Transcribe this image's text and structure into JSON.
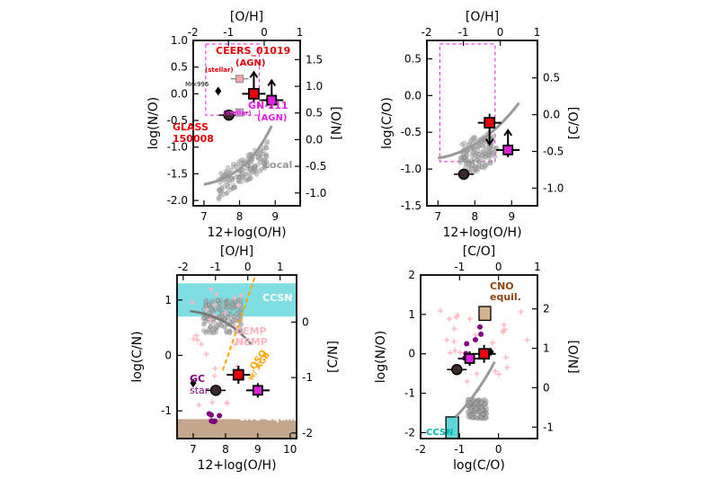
{
  "chart_data": [
    {
      "type": "scatter",
      "panel": "top-left",
      "xlabel": "12+log(O/H)",
      "ylabel": "log(N/O)",
      "xlim": [
        6.7,
        9.7
      ],
      "ylim": [
        -2.1,
        1.0
      ],
      "xticks": [
        7,
        8,
        9
      ],
      "yticks": [
        1.0,
        0.5,
        0.0,
        -0.5,
        -1.0,
        -1.5,
        -2.0
      ],
      "top_axis": {
        "label": "[O/H]",
        "ticks": [
          "-2",
          "-1",
          "0",
          "1"
        ],
        "values": [
          -2,
          -1,
          0,
          1
        ]
      },
      "right_axis": {
        "label": "[N/O]",
        "ticks": [
          "1.5",
          "1.0",
          "0.5",
          "0.0",
          "-0.5",
          "-1.0"
        ],
        "values": [
          1.5,
          1.0,
          0.5,
          0.0,
          -0.5,
          -1.0
        ]
      },
      "annotations": [
        {
          "text": "CEERS_01019",
          "color": "#e8000b"
        },
        {
          "text": "(AGN)",
          "color": "#e8000b"
        },
        {
          "text": "GN-z11",
          "color": "#e020e0"
        },
        {
          "text": "(AGN)",
          "color": "#e020e0"
        },
        {
          "text": "GLASS",
          "color": "#e8000b"
        },
        {
          "text": "150008",
          "color": "#e8000b"
        },
        {
          "text": "Mrk996",
          "color": "#000000"
        },
        {
          "text": "(stellar)",
          "color": "#e8000b"
        },
        {
          "text": "(stellar)",
          "color": "#e020e0"
        },
        {
          "text": "Local",
          "color": "#999999"
        }
      ],
      "series": [
        {
          "kind": "highlight",
          "points": [
            {
              "x": 8.4,
              "y": 0.0,
              "style": "red-square-arrow-up"
            },
            {
              "x": 8.9,
              "y": -0.12,
              "style": "magenta-square-arrow-up"
            },
            {
              "x": 7.7,
              "y": -0.4,
              "style": "black-circle"
            },
            {
              "x": 7.4,
              "y": 0.05,
              "style": "black-diamond"
            },
            {
              "x": 8.0,
              "y": 0.28,
              "style": "gray-pink-square"
            },
            {
              "x": 8.0,
              "y": -0.35,
              "style": "gray-magenta-square"
            }
          ]
        }
      ]
    },
    {
      "type": "scatter",
      "panel": "top-right",
      "xlabel": "12+log(O/H)",
      "ylabel": "log(C/O)",
      "xlim": [
        6.7,
        9.7
      ],
      "ylim": [
        -1.5,
        0.75
      ],
      "xticks": [
        7,
        8,
        9
      ],
      "yticks": [
        0.5,
        0.0,
        -0.5,
        -1.0,
        -1.5
      ],
      "top_axis": {
        "label": "[O/H]",
        "ticks": [
          "-2",
          "-1",
          "0",
          "1"
        ],
        "values": [
          -2,
          -1,
          0,
          1
        ]
      },
      "right_axis": {
        "label": "[C/O]",
        "ticks": [
          "0.5",
          "0.0",
          "-0.5",
          "-1.0"
        ],
        "values": [
          0.5,
          0.0,
          -0.5,
          -1.0
        ]
      },
      "series": [
        {
          "kind": "highlight",
          "points": [
            {
              "x": 8.4,
              "y": -0.37,
              "style": "red-square-arrow-down"
            },
            {
              "x": 8.9,
              "y": -0.74,
              "style": "magenta-square-arrow-up"
            },
            {
              "x": 7.7,
              "y": -1.07,
              "style": "black-circle"
            }
          ]
        }
      ]
    },
    {
      "type": "scatter",
      "panel": "bottom-left",
      "xlabel": "12+log(O/H)",
      "ylabel": "log(C/N)",
      "xlim": [
        6.5,
        10.2
      ],
      "ylim": [
        -1.5,
        1.45
      ],
      "xticks": [
        7,
        8,
        9,
        10
      ],
      "yticks": [
        1,
        0,
        -1
      ],
      "top_axis": {
        "label": "[O/H]",
        "ticks": [
          "-2",
          "-1",
          "0",
          "1"
        ],
        "values": [
          -2,
          -1,
          0,
          1
        ]
      },
      "right_axis": {
        "label": "[C/N]",
        "ticks": [
          "0",
          "-1",
          "-2"
        ],
        "values": [
          0,
          -1,
          -2
        ]
      },
      "annotations": [
        {
          "text": "CCSN",
          "color": "#ffffff"
        },
        {
          "text": "CEMP",
          "color": "#ffb6c1"
        },
        {
          "text": "NEMP",
          "color": "#ffb6c1"
        },
        {
          "text": "QSO",
          "color": "#ffa500"
        },
        {
          "text": "w/ AGB",
          "color": "#ffa500"
        },
        {
          "text": "GC",
          "color": "#800080"
        },
        {
          "text": "star",
          "color": "#800080"
        },
        {
          "text": "CNO equil.",
          "color": "#ffffff"
        }
      ],
      "series": [
        {
          "kind": "highlight",
          "points": [
            {
              "x": 8.4,
              "y": -0.35,
              "style": "red-square"
            },
            {
              "x": 9.0,
              "y": -0.63,
              "style": "magenta-square"
            },
            {
              "x": 7.7,
              "y": -0.63,
              "style": "black-circle"
            },
            {
              "x": 7.0,
              "y": -0.5,
              "style": "black-diamond"
            }
          ]
        }
      ]
    },
    {
      "type": "scatter",
      "panel": "bottom-right",
      "xlabel": "log(C/O)",
      "ylabel": "log(N/O)",
      "xlim": [
        -2.0,
        1.0
      ],
      "ylim": [
        -2.15,
        2.0
      ],
      "xticks": [
        -2,
        -1,
        0
      ],
      "yticks": [
        2,
        1,
        0,
        -1,
        -2
      ],
      "top_axis": {
        "label": "[C/O]",
        "ticks": [
          "-1",
          "0",
          "1"
        ],
        "values": [
          -1,
          0,
          1
        ]
      },
      "right_axis": {
        "label": "[N/O]",
        "ticks": [
          "2",
          "1",
          "0",
          "-1"
        ],
        "values": [
          2,
          1,
          0,
          -1
        ]
      },
      "annotations": [
        {
          "text": "CNO",
          "color": "#8b4513"
        },
        {
          "text": "equil.",
          "color": "#8b4513"
        },
        {
          "text": "CCSN",
          "color": "#00b5b5"
        }
      ],
      "series": [
        {
          "kind": "highlight",
          "points": [
            {
              "x": -0.37,
              "y": 0.0,
              "style": "red-square"
            },
            {
              "x": -0.74,
              "y": -0.12,
              "style": "magenta-square"
            },
            {
              "x": -1.07,
              "y": -0.4,
              "style": "black-circle"
            },
            {
              "x": -0.2,
              "y": 0.05,
              "style": "black-diamond"
            }
          ]
        }
      ]
    }
  ]
}
